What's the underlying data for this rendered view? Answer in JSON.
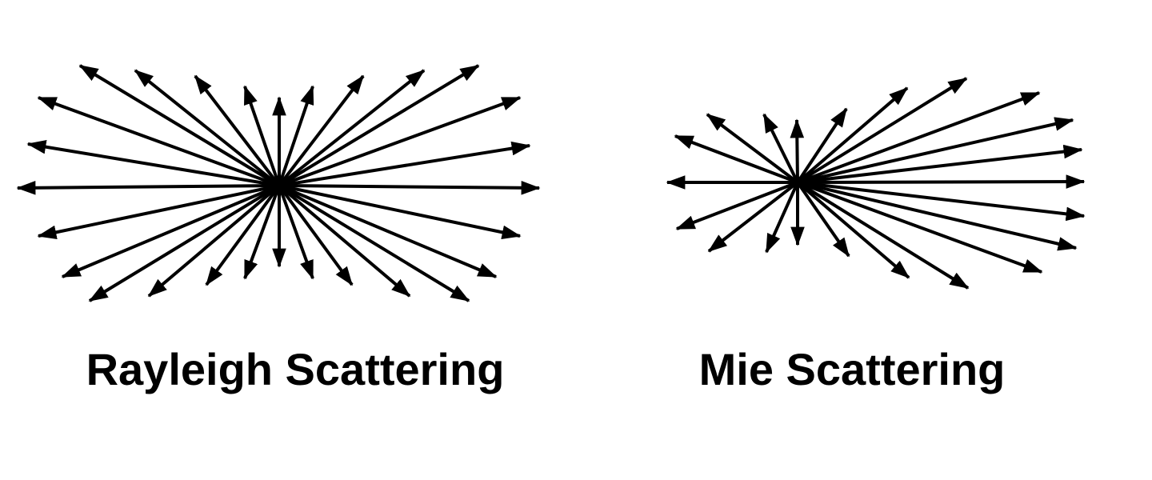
{
  "diagrams": [
    {
      "label": "Rayleigh Scattering",
      "pattern": "symmetric"
    },
    {
      "label": "Mie Scattering",
      "pattern": "forward"
    }
  ],
  "colors": {
    "ink": "#000000",
    "background": "#ffffff"
  }
}
